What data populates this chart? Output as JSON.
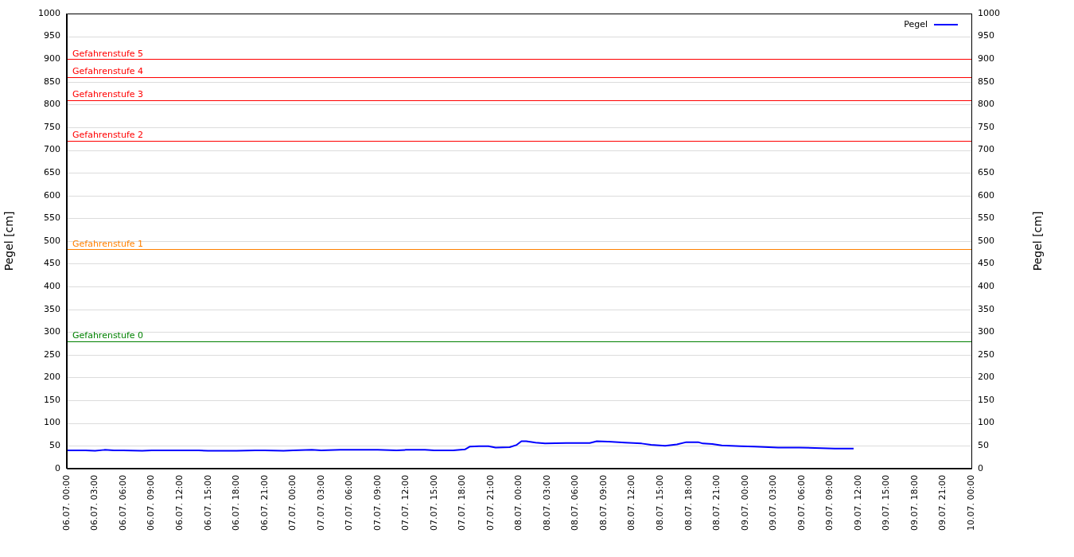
{
  "chart_data": {
    "type": "line",
    "ylabel": "Pegel [cm]",
    "y2label": "Pegel [cm]",
    "xlim": [
      "--07-06T00:00",
      "--07-10T00:00"
    ],
    "xticks": [
      {
        "value": "--07-06T00:00",
        "label": "06.07. 00:00"
      },
      {
        "value": "--07-06T03:00",
        "label": "06.07. 03:00"
      },
      {
        "value": "--07-06T06:00",
        "label": "06.07. 06:00"
      },
      {
        "value": "--07-06T09:00",
        "label": "06.07. 09:00"
      },
      {
        "value": "--07-06T12:00",
        "label": "06.07. 12:00"
      },
      {
        "value": "--07-06T15:00",
        "label": "06.07. 15:00"
      },
      {
        "value": "--07-06T18:00",
        "label": "06.07. 18:00"
      },
      {
        "value": "--07-06T21:00",
        "label": "06.07. 21:00"
      },
      {
        "value": "--07-07T00:00",
        "label": "07.07. 00:00"
      },
      {
        "value": "--07-07T03:00",
        "label": "07.07. 03:00"
      },
      {
        "value": "--07-07T06:00",
        "label": "07.07. 06:00"
      },
      {
        "value": "--07-07T09:00",
        "label": "07.07. 09:00"
      },
      {
        "value": "--07-07T12:00",
        "label": "07.07. 12:00"
      },
      {
        "value": "--07-07T15:00",
        "label": "07.07. 15:00"
      },
      {
        "value": "--07-07T18:00",
        "label": "07.07. 18:00"
      },
      {
        "value": "--07-07T21:00",
        "label": "07.07. 21:00"
      },
      {
        "value": "--07-08T00:00",
        "label": "08.07. 00:00"
      },
      {
        "value": "--07-08T03:00",
        "label": "08.07. 03:00"
      },
      {
        "value": "--07-08T06:00",
        "label": "08.07. 06:00"
      },
      {
        "value": "--07-08T09:00",
        "label": "08.07. 09:00"
      },
      {
        "value": "--07-08T12:00",
        "label": "08.07. 12:00"
      },
      {
        "value": "--07-08T15:00",
        "label": "08.07. 15:00"
      },
      {
        "value": "--07-08T18:00",
        "label": "08.07. 18:00"
      },
      {
        "value": "--07-08T21:00",
        "label": "08.07. 21:00"
      },
      {
        "value": "--07-09T00:00",
        "label": "09.07. 00:00"
      },
      {
        "value": "--07-09T03:00",
        "label": "09.07. 03:00"
      },
      {
        "value": "--07-09T06:00",
        "label": "09.07. 06:00"
      },
      {
        "value": "--07-09T09:00",
        "label": "09.07. 09:00"
      },
      {
        "value": "--07-09T12:00",
        "label": "09.07. 12:00"
      },
      {
        "value": "--07-09T15:00",
        "label": "09.07. 15:00"
      },
      {
        "value": "--07-09T18:00",
        "label": "09.07. 18:00"
      },
      {
        "value": "--07-09T21:00",
        "label": "09.07. 21:00"
      },
      {
        "value": "--07-10T00:00",
        "label": "10.07. 00:00"
      }
    ],
    "ylim": [
      0,
      1000
    ],
    "yticks": [
      0,
      50,
      100,
      150,
      200,
      250,
      300,
      350,
      400,
      450,
      500,
      550,
      600,
      650,
      700,
      750,
      800,
      850,
      900,
      950,
      1000
    ],
    "y2lim": [
      0,
      1000
    ],
    "y2ticks": [
      0,
      50,
      100,
      150,
      200,
      250,
      300,
      350,
      400,
      450,
      500,
      550,
      600,
      650,
      700,
      750,
      800,
      850,
      900,
      950,
      1000
    ],
    "grid": "y",
    "legend": "top right",
    "marker": "none",
    "line_style": "solid",
    "series": [
      {
        "name": "Pegel",
        "color": "#0000ff",
        "x": [
          "--07-06T00:00",
          "--07-06T02:00",
          "--07-06T03:00",
          "--07-06T04:00",
          "--07-06T05:00",
          "--07-06T06:00",
          "--07-06T08:00",
          "--07-06T09:00",
          "--07-06T10:00",
          "--07-06T12:00",
          "--07-06T14:00",
          "--07-06T15:00",
          "--07-06T17:00",
          "--07-06T18:00",
          "--07-06T20:00",
          "--07-06T21:00",
          "--07-06T23:00",
          "--07-07T00:00",
          "--07-07T02:00",
          "--07-07T03:00",
          "--07-07T05:00",
          "--07-07T06:00",
          "--07-07T08:00",
          "--07-07T09:00",
          "--07-07T11:00",
          "--07-07T12:00",
          "--07-07T14:00",
          "--07-07T15:00",
          "--07-07T16:00",
          "--07-07T17:00",
          "--07-07T18:15",
          "--07-07T18:45",
          "--07-07T19:45",
          "--07-07T20:45",
          "--07-07T21:30",
          "--07-07T23:00",
          "--07-07T23:45",
          "--07-08T00:15",
          "--07-08T00:45",
          "--07-08T01:45",
          "--07-08T02:45",
          "--07-08T05:00",
          "--07-08T07:30",
          "--07-08T08:15",
          "--07-08T09:30",
          "--07-08T11:15",
          "--07-08T13:00",
          "--07-08T14:00",
          "--07-08T15:30",
          "--07-08T16:45",
          "--07-08T17:45",
          "--07-08T19:00",
          "--07-08T19:30",
          "--07-08T20:30",
          "--07-08T21:30",
          "--07-08T23:30",
          "--07-09T01:00",
          "--07-09T03:30",
          "--07-09T05:45",
          "--07-09T09:30",
          "--07-09T11:30"
        ],
        "values": [
          40,
          40,
          39,
          41,
          40,
          40,
          39,
          40,
          40,
          40,
          40,
          39,
          39,
          39,
          40,
          40,
          39,
          40,
          41,
          40,
          41,
          41,
          41,
          41,
          40,
          41,
          41,
          40,
          40,
          40,
          42,
          48,
          49,
          49,
          46,
          47,
          52,
          60,
          60,
          57,
          55,
          56,
          56,
          60,
          59,
          57,
          55,
          52,
          50,
          53,
          58,
          58,
          55,
          54,
          51,
          49,
          48,
          46,
          46,
          44,
          44
        ]
      }
    ],
    "ref_lines": [
      {
        "axis": "y",
        "value": 900,
        "label": "Gefahrenstufe 5",
        "color": "#ff0000"
      },
      {
        "axis": "y",
        "value": 860,
        "label": "Gefahrenstufe 4",
        "color": "#ff0000"
      },
      {
        "axis": "y",
        "value": 810,
        "label": "Gefahrenstufe 3",
        "color": "#ff0000"
      },
      {
        "axis": "y",
        "value": 720,
        "label": "Gefahrenstufe 2",
        "color": "#ff0000"
      },
      {
        "axis": "y",
        "value": 482,
        "label": "Gefahrenstufe 1",
        "color": "#ff8000"
      },
      {
        "axis": "y",
        "value": 280,
        "label": "Gefahrenstufe 0",
        "color": "#008000"
      }
    ]
  }
}
